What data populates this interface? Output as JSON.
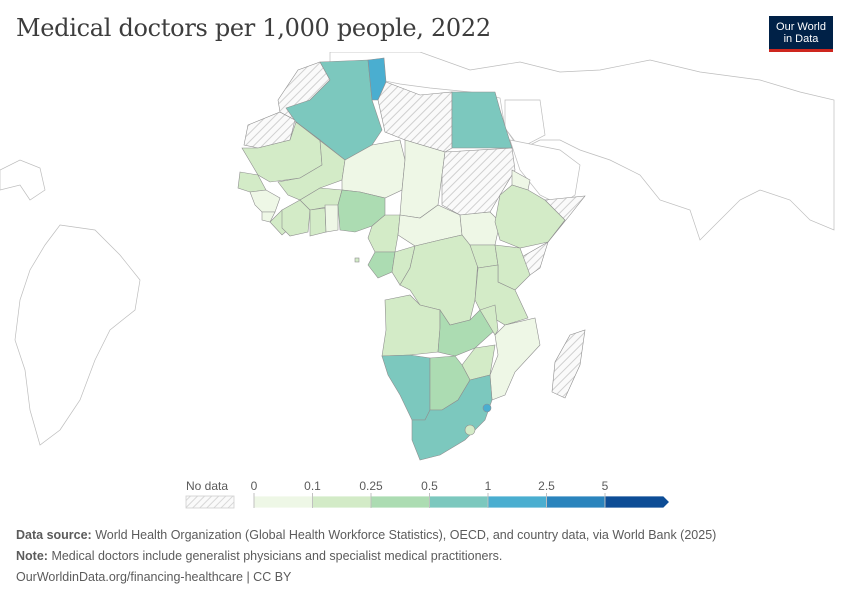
{
  "title": "Medical doctors per 1,000 people, 2022",
  "logo": {
    "line1": "Our World",
    "line2": "in Data"
  },
  "legend": {
    "no_data_label": "No data",
    "ticks": [
      "0",
      "0.1",
      "0.25",
      "0.5",
      "1",
      "2.5",
      "5"
    ],
    "colors": [
      "#eef7e6",
      "#d3ebc7",
      "#acdcb2",
      "#7cc8be",
      "#4aaed0",
      "#2a84bd",
      "#0d4d96"
    ]
  },
  "footer": {
    "source_label": "Data source:",
    "source_text": "World Health Organization (Global Health Workforce Statistics), OECD, and country data, via World Bank (2025)",
    "note_label": "Note:",
    "note_text": "Medical doctors include generalist physicians and specialist medical practitioners.",
    "url_text": "OurWorldinData.org/financing-healthcare | CC BY"
  }
}
